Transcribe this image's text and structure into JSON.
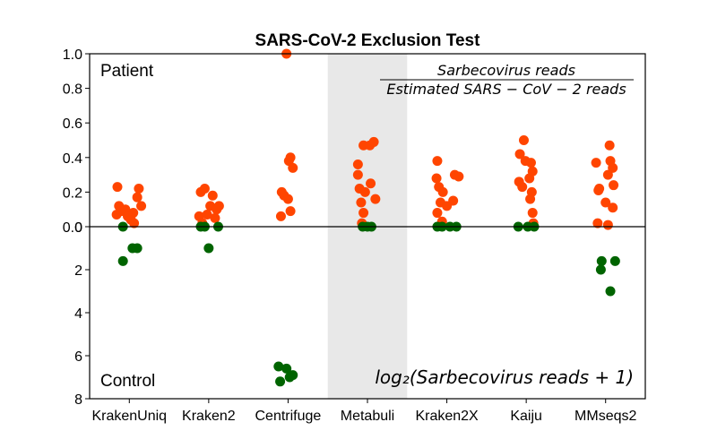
{
  "chart_data": {
    "type": "scatter",
    "title": "SARS-CoV-2 Exclusion Test",
    "categories": [
      "KrakenUniq",
      "Kraken2",
      "Centrifuge",
      "Metabuli",
      "Kraken2X",
      "Kaiju",
      "MMseqs2"
    ],
    "highlighted_category": "Metabuli",
    "top_panel": {
      "label": "Patient",
      "formula_numerator": "Sarbecovirus reads",
      "formula_denominator": "Estimated SARS − CoV − 2 reads",
      "ylim": [
        0,
        1.0
      ],
      "ticks": [
        "0.0",
        "0.2",
        "0.4",
        "0.6",
        "0.8",
        "1.0"
      ],
      "tick_values": [
        0,
        0.2,
        0.4,
        0.6,
        0.8,
        1.0
      ],
      "color": "#ff4500"
    },
    "bottom_panel": {
      "label": "Control",
      "formula": "log₂(Sarbecovirus reads + 1)",
      "ylim": [
        0,
        8
      ],
      "inverted": true,
      "ticks": [
        "0",
        "2",
        "4",
        "6",
        "8"
      ],
      "tick_values": [
        0,
        2,
        4,
        6,
        8
      ],
      "color": "#006400"
    },
    "patient_points": [
      {
        "cat": 0,
        "jitter": -0.15,
        "y": 0.23
      },
      {
        "cat": 0,
        "jitter": 0.12,
        "y": 0.22
      },
      {
        "cat": 0,
        "jitter": -0.16,
        "y": 0.07
      },
      {
        "cat": 0,
        "jitter": -0.1,
        "y": 0.09
      },
      {
        "cat": 0,
        "jitter": -0.13,
        "y": 0.12
      },
      {
        "cat": 0,
        "jitter": -0.05,
        "y": 0.1
      },
      {
        "cat": 0,
        "jitter": 0.02,
        "y": 0.04
      },
      {
        "cat": 0,
        "jitter": 0.05,
        "y": 0.08
      },
      {
        "cat": 0,
        "jitter": 0.1,
        "y": 0.17
      },
      {
        "cat": 0,
        "jitter": 0.15,
        "y": 0.12
      },
      {
        "cat": 0,
        "jitter": -0.02,
        "y": 0.06
      },
      {
        "cat": 0,
        "jitter": 0.06,
        "y": 0.02
      },
      {
        "cat": 1,
        "jitter": -0.1,
        "y": 0.2
      },
      {
        "cat": 1,
        "jitter": -0.05,
        "y": 0.22
      },
      {
        "cat": 1,
        "jitter": 0.05,
        "y": 0.18
      },
      {
        "cat": 1,
        "jitter": 0.02,
        "y": 0.12
      },
      {
        "cat": 1,
        "jitter": 0.13,
        "y": 0.12
      },
      {
        "cat": 1,
        "jitter": 0.1,
        "y": 0.1
      },
      {
        "cat": 1,
        "jitter": -0.12,
        "y": 0.06
      },
      {
        "cat": 1,
        "jitter": -0.02,
        "y": 0.07
      },
      {
        "cat": 1,
        "jitter": 0.08,
        "y": 0.05
      },
      {
        "cat": 1,
        "jitter": -0.08,
        "y": 0.02
      },
      {
        "cat": 2,
        "jitter": -0.02,
        "y": 1.0
      },
      {
        "cat": 2,
        "jitter": 0.03,
        "y": 0.4
      },
      {
        "cat": 2,
        "jitter": 0.01,
        "y": 0.38
      },
      {
        "cat": 2,
        "jitter": 0.06,
        "y": 0.34
      },
      {
        "cat": 2,
        "jitter": -0.08,
        "y": 0.2
      },
      {
        "cat": 2,
        "jitter": -0.05,
        "y": 0.18
      },
      {
        "cat": 2,
        "jitter": 0.0,
        "y": 0.16
      },
      {
        "cat": 2,
        "jitter": 0.03,
        "y": 0.09
      },
      {
        "cat": 2,
        "jitter": -0.09,
        "y": 0.06
      },
      {
        "cat": 3,
        "jitter": -0.05,
        "y": 0.47
      },
      {
        "cat": 3,
        "jitter": 0.03,
        "y": 0.47
      },
      {
        "cat": 3,
        "jitter": 0.08,
        "y": 0.49
      },
      {
        "cat": 3,
        "jitter": -0.12,
        "y": 0.36
      },
      {
        "cat": 3,
        "jitter": -0.12,
        "y": 0.3
      },
      {
        "cat": 3,
        "jitter": 0.04,
        "y": 0.25
      },
      {
        "cat": 3,
        "jitter": -0.1,
        "y": 0.22
      },
      {
        "cat": 3,
        "jitter": -0.03,
        "y": 0.2
      },
      {
        "cat": 3,
        "jitter": 0.1,
        "y": 0.16
      },
      {
        "cat": 3,
        "jitter": -0.08,
        "y": 0.14
      },
      {
        "cat": 3,
        "jitter": -0.05,
        "y": 0.08
      },
      {
        "cat": 3,
        "jitter": -0.07,
        "y": 0.02
      },
      {
        "cat": 4,
        "jitter": -0.12,
        "y": 0.38
      },
      {
        "cat": 4,
        "jitter": 0.1,
        "y": 0.3
      },
      {
        "cat": 4,
        "jitter": 0.15,
        "y": 0.29
      },
      {
        "cat": 4,
        "jitter": -0.13,
        "y": 0.28
      },
      {
        "cat": 4,
        "jitter": -0.1,
        "y": 0.23
      },
      {
        "cat": 4,
        "jitter": -0.05,
        "y": 0.2
      },
      {
        "cat": 4,
        "jitter": 0.08,
        "y": 0.15
      },
      {
        "cat": 4,
        "jitter": -0.08,
        "y": 0.14
      },
      {
        "cat": 4,
        "jitter": 0.0,
        "y": 0.12
      },
      {
        "cat": 4,
        "jitter": -0.12,
        "y": 0.08
      },
      {
        "cat": 4,
        "jitter": -0.06,
        "y": 0.03
      },
      {
        "cat": 5,
        "jitter": -0.03,
        "y": 0.5
      },
      {
        "cat": 5,
        "jitter": -0.08,
        "y": 0.42
      },
      {
        "cat": 5,
        "jitter": -0.01,
        "y": 0.38
      },
      {
        "cat": 5,
        "jitter": 0.06,
        "y": 0.37
      },
      {
        "cat": 5,
        "jitter": 0.08,
        "y": 0.32
      },
      {
        "cat": 5,
        "jitter": 0.04,
        "y": 0.28
      },
      {
        "cat": 5,
        "jitter": -0.09,
        "y": 0.26
      },
      {
        "cat": 5,
        "jitter": -0.05,
        "y": 0.23
      },
      {
        "cat": 5,
        "jitter": 0.07,
        "y": 0.2
      },
      {
        "cat": 5,
        "jitter": 0.05,
        "y": 0.16
      },
      {
        "cat": 5,
        "jitter": 0.08,
        "y": 0.08
      },
      {
        "cat": 5,
        "jitter": 0.09,
        "y": 0.02
      },
      {
        "cat": 6,
        "jitter": 0.05,
        "y": 0.47
      },
      {
        "cat": 6,
        "jitter": -0.12,
        "y": 0.37
      },
      {
        "cat": 6,
        "jitter": 0.06,
        "y": 0.38
      },
      {
        "cat": 6,
        "jitter": 0.09,
        "y": 0.34
      },
      {
        "cat": 6,
        "jitter": 0.03,
        "y": 0.3
      },
      {
        "cat": 6,
        "jitter": 0.1,
        "y": 0.24
      },
      {
        "cat": 6,
        "jitter": -0.08,
        "y": 0.22
      },
      {
        "cat": 6,
        "jitter": -0.09,
        "y": 0.21
      },
      {
        "cat": 6,
        "jitter": 0.0,
        "y": 0.14
      },
      {
        "cat": 6,
        "jitter": 0.09,
        "y": 0.11
      },
      {
        "cat": 6,
        "jitter": -0.1,
        "y": 0.02
      },
      {
        "cat": 6,
        "jitter": 0.03,
        "y": 0.01
      }
    ],
    "control_points": [
      {
        "cat": 0,
        "jitter": -0.08,
        "y": 0.0
      },
      {
        "cat": 0,
        "jitter": 0.04,
        "y": 1.0
      },
      {
        "cat": 0,
        "jitter": 0.1,
        "y": 1.0
      },
      {
        "cat": 0,
        "jitter": -0.08,
        "y": 1.6
      },
      {
        "cat": 1,
        "jitter": -0.1,
        "y": 0.0
      },
      {
        "cat": 1,
        "jitter": -0.05,
        "y": 0.0
      },
      {
        "cat": 1,
        "jitter": 0.12,
        "y": 0.0
      },
      {
        "cat": 1,
        "jitter": 0.0,
        "y": 1.0
      },
      {
        "cat": 2,
        "jitter": -0.12,
        "y": 6.5
      },
      {
        "cat": 2,
        "jitter": -0.02,
        "y": 6.6
      },
      {
        "cat": 2,
        "jitter": 0.06,
        "y": 6.9
      },
      {
        "cat": 2,
        "jitter": 0.02,
        "y": 7.0
      },
      {
        "cat": 2,
        "jitter": -0.1,
        "y": 7.2
      },
      {
        "cat": 3,
        "jitter": -0.06,
        "y": 0.0
      },
      {
        "cat": 3,
        "jitter": 0.0,
        "y": 0.0
      },
      {
        "cat": 3,
        "jitter": 0.05,
        "y": 0.0
      },
      {
        "cat": 4,
        "jitter": -0.12,
        "y": 0.0
      },
      {
        "cat": 4,
        "jitter": -0.06,
        "y": 0.0
      },
      {
        "cat": 4,
        "jitter": 0.04,
        "y": 0.0
      },
      {
        "cat": 4,
        "jitter": 0.12,
        "y": 0.0
      },
      {
        "cat": 5,
        "jitter": -0.1,
        "y": 0.0
      },
      {
        "cat": 5,
        "jitter": 0.02,
        "y": 0.0
      },
      {
        "cat": 5,
        "jitter": 0.1,
        "y": 0.0
      },
      {
        "cat": 6,
        "jitter": -0.05,
        "y": 1.6
      },
      {
        "cat": 6,
        "jitter": 0.12,
        "y": 1.6
      },
      {
        "cat": 6,
        "jitter": -0.06,
        "y": 2.0
      },
      {
        "cat": 6,
        "jitter": 0.06,
        "y": 3.0
      }
    ]
  }
}
